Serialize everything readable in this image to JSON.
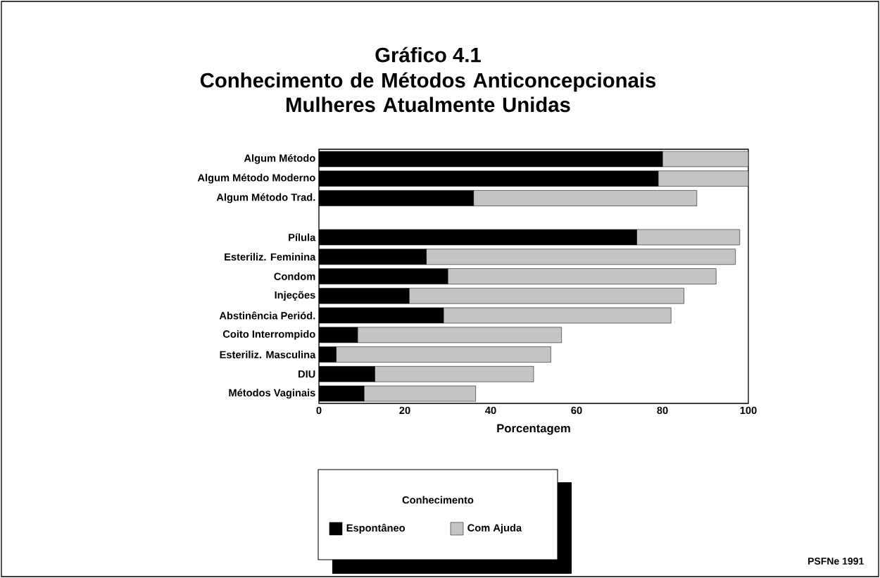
{
  "chart_data": {
    "type": "bar",
    "orientation": "horizontal",
    "stacked": true,
    "title": "Gráfico 4.1",
    "subtitle": "Conhecimento de Métodos Anticoncepcionais Mulheres Atualmente Unidas",
    "xlabel": "Porcentagem",
    "legend_title": "Conhecimento",
    "legend": "bottom",
    "categories": [
      "Algum Método",
      "Algum Método Moderno",
      "Algum Método Trad.",
      null,
      "Pílula",
      "Esteriliz. Feminina",
      "Condom",
      "Injeções",
      "Abstinência Periód.",
      "Coito Interrompido",
      "Esteriliz. Masculina",
      "DIU",
      "Métodos Vaginais"
    ],
    "series": [
      {
        "name": "Espontâneo",
        "color": "#000000",
        "values": [
          80,
          79,
          36,
          null,
          74,
          25,
          30,
          21,
          29,
          9,
          4,
          13,
          10.5
        ]
      },
      {
        "name": "Com Ajuda",
        "color": "#c4c4c4",
        "values": [
          20,
          21,
          52,
          null,
          24,
          72,
          62.5,
          64,
          53,
          47.5,
          50,
          37,
          26
        ]
      }
    ],
    "xlim": [
      0,
      100
    ],
    "xticks": [
      0,
      20,
      40,
      60,
      80,
      100
    ],
    "grid": false,
    "annotations": [
      "PSFNe 1991"
    ]
  }
}
